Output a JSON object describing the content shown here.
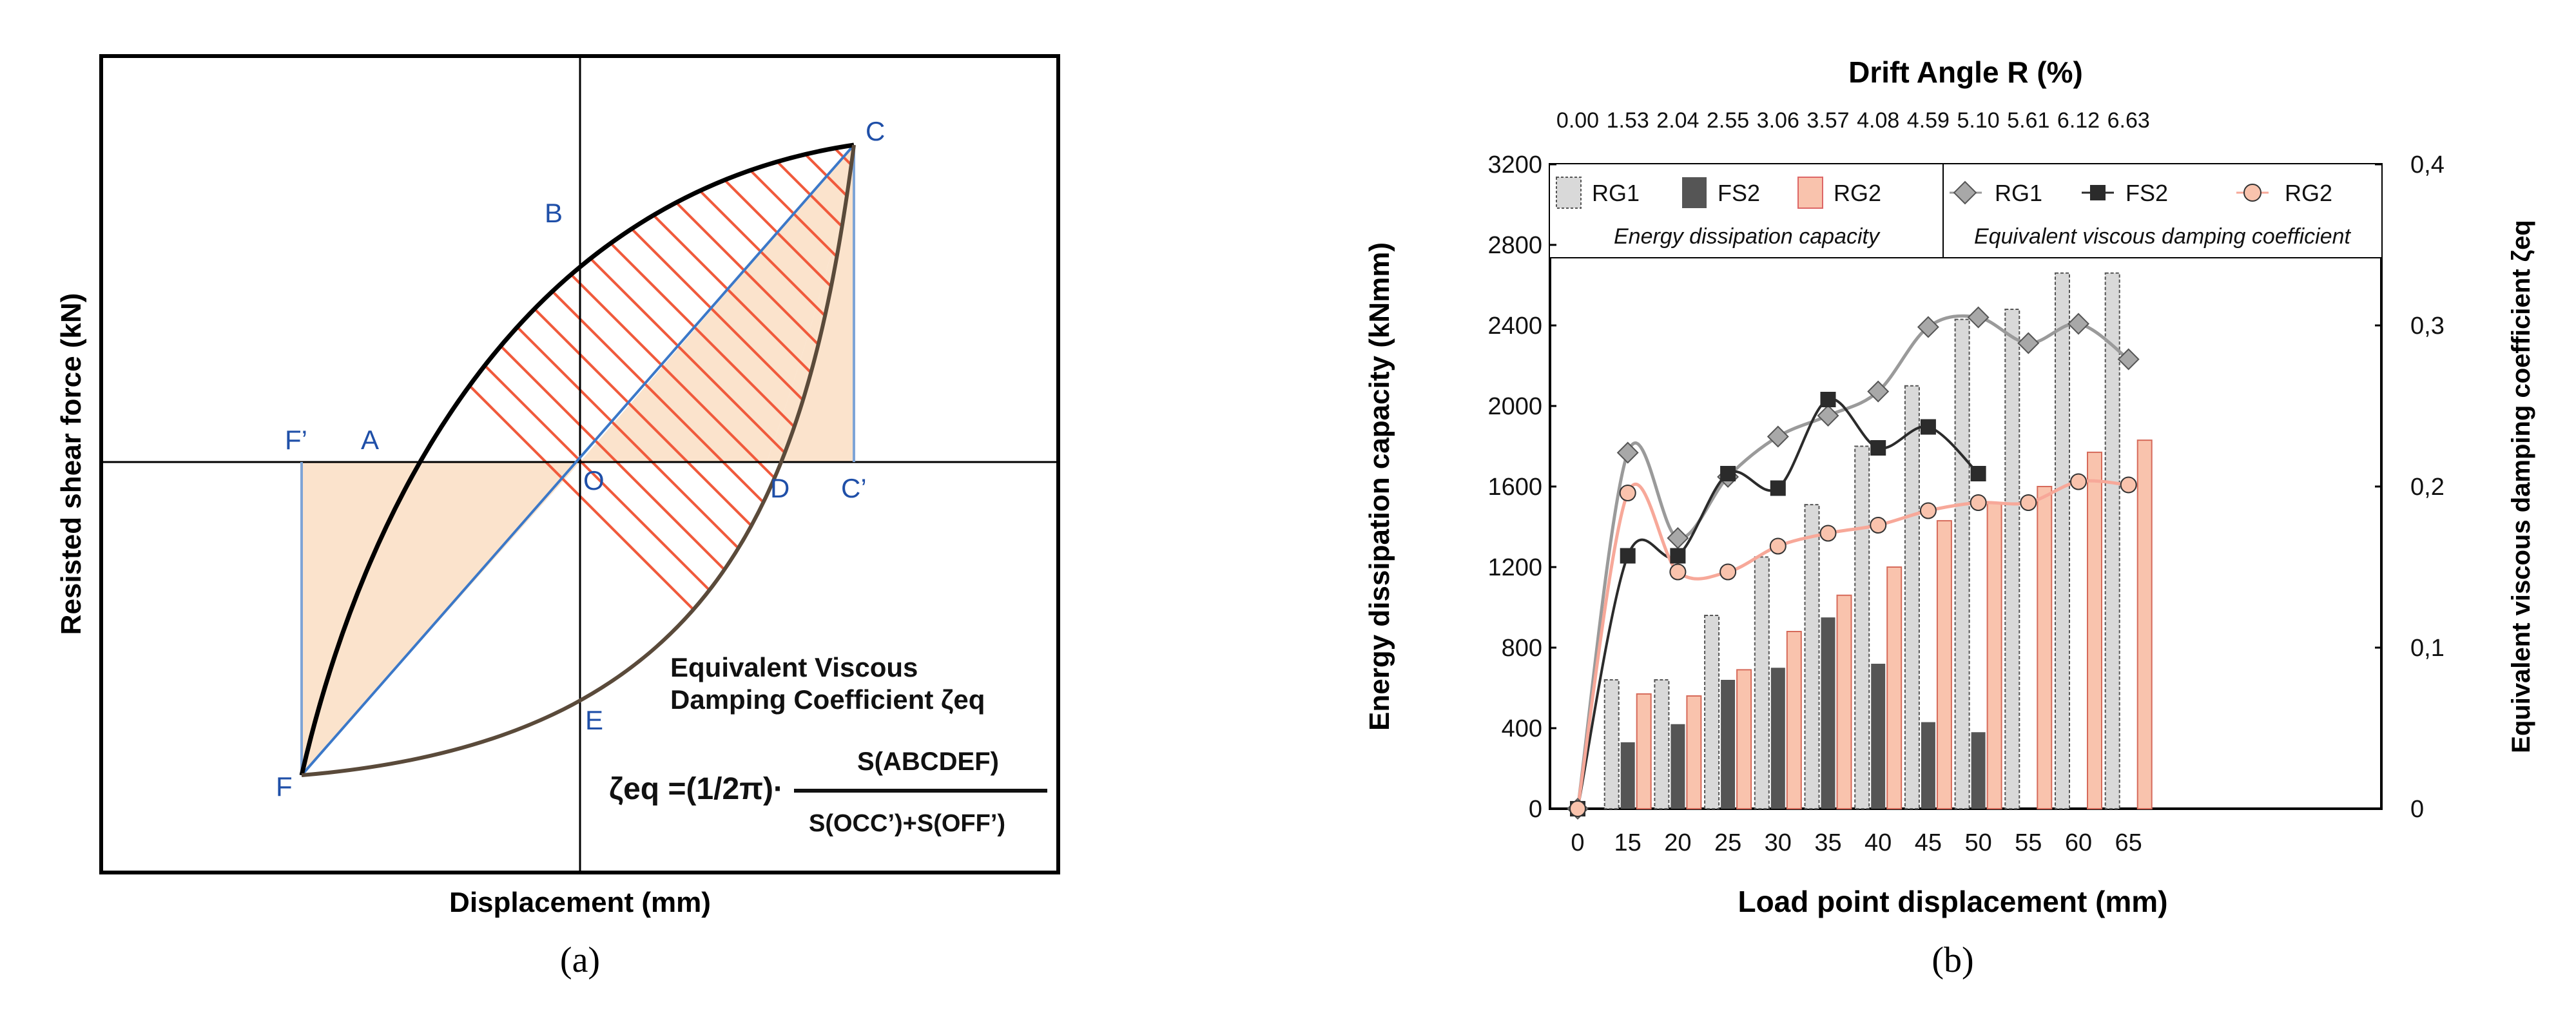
{
  "panel_a": {
    "caption": "(a)",
    "xlabel": "Displacement (mm)",
    "ylabel": "Resisted shear force (kN)",
    "points": {
      "A": "A",
      "B": "B",
      "C": "C",
      "C_prime": "C’",
      "D": "D",
      "E": "E",
      "F": "F",
      "F_prime": "F’",
      "O": "O"
    },
    "title_line1": "Equivalent Viscous",
    "title_line2": "Damping Coefficient ζeq",
    "formula_lhs": "ζeq =(1/2π)·",
    "formula_num": "S(ABCDEF)",
    "formula_den": "S(OCC’)+S(OFF’)",
    "colors": {
      "loop": "#000000",
      "hatch": "#f05a3c",
      "fill": "#fbe3cc",
      "diag": "#3b78c8",
      "label": "#1f4fa8"
    }
  },
  "panel_b": {
    "caption": "(b)",
    "chart_data": {
      "type": "bar",
      "top_axis_title": "Drift Angle R (%)",
      "top_ticks": [
        "0.00",
        "1.53",
        "2.04",
        "2.55",
        "3.06",
        "3.57",
        "4.08",
        "4.59",
        "5.10",
        "5.61",
        "6.12",
        "6.63"
      ],
      "xlabel": "Load point displacement (mm)",
      "ylabel": "Energy dissipation capacity (kNmm)",
      "y2label": "Equivalent viscous damping coefficient ζeq",
      "categories": [
        "0",
        "15",
        "20",
        "25",
        "30",
        "35",
        "40",
        "45",
        "50",
        "55",
        "60",
        "65"
      ],
      "ylim": [
        0,
        3200
      ],
      "yticks": [
        "0",
        "400",
        "800",
        "1200",
        "1600",
        "2000",
        "2400",
        "2800",
        "3200"
      ],
      "y2lim": [
        0,
        0.4
      ],
      "y2ticks": [
        "0",
        "0,1",
        "0,2",
        "0,3",
        "0,4"
      ],
      "bar_series": [
        {
          "name": "RG1",
          "values": [
            0,
            640,
            640,
            960,
            1250,
            1510,
            1800,
            2100,
            2430,
            2480,
            2660,
            2660
          ],
          "color": "#d9d9d9"
        },
        {
          "name": "FS2",
          "values": [
            0,
            330,
            420,
            640,
            700,
            950,
            720,
            430,
            380,
            null,
            null,
            null
          ],
          "color": "#555555"
        },
        {
          "name": "RG2",
          "values": [
            0,
            570,
            560,
            690,
            880,
            1060,
            1200,
            1430,
            1520,
            1600,
            1770,
            1830
          ],
          "color": "#f9c3ad"
        }
      ],
      "line_series": [
        {
          "name": "RG1",
          "values": [
            0,
            0.221,
            0.168,
            0.206,
            0.231,
            0.244,
            0.259,
            0.299,
            0.305,
            0.289,
            0.301,
            0.279
          ],
          "color": "#9a9a9a"
        },
        {
          "name": "FS2",
          "values": [
            0,
            0.157,
            0.157,
            0.208,
            0.199,
            0.254,
            0.224,
            0.237,
            0.208,
            null,
            null,
            null
          ],
          "color": "#2b2b2b"
        },
        {
          "name": "RG2",
          "values": [
            0,
            0.196,
            0.147,
            0.147,
            0.163,
            0.171,
            0.176,
            0.185,
            0.19,
            0.19,
            0.203,
            0.201
          ],
          "color": "#f7a899"
        }
      ],
      "legend_left_caption": "Energy dissipation capacity",
      "legend_right_caption": "Equivalent viscous damping coefficient",
      "grid": false
    }
  }
}
